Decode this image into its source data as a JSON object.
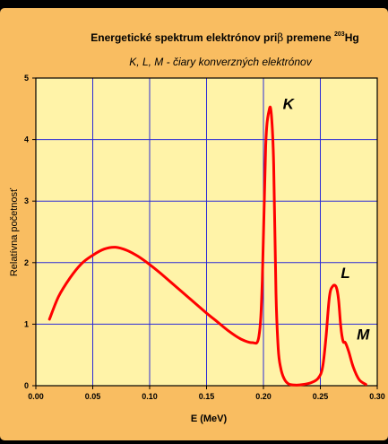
{
  "chart_data": {
    "type": "line",
    "title_main": "Energetické spektrum elektrónov pri",
    "title_beta": "β",
    "title_rest": " premene ",
    "title_mass": "203",
    "title_element": "Hg",
    "subtitle": "K, L, M - čiary konverzných elektrónov",
    "xlabel": "E (MeV)",
    "ylabel": "Relatívna početnosť",
    "xlim": [
      0,
      0.3
    ],
    "ylim": [
      0,
      5
    ],
    "x_ticks": [
      "0.00",
      "0.05",
      "0.10",
      "0.15",
      "0.20",
      "0.25",
      "0.30"
    ],
    "y_ticks": [
      "0",
      "1",
      "2",
      "3",
      "4",
      "5"
    ],
    "grid": true,
    "plot_bg": "#fff3a8",
    "grid_color": "#2b2bd6",
    "line_color": "#ff0000",
    "annotations": [
      {
        "text": "K",
        "x": 0.217,
        "y": 4.5
      },
      {
        "text": "L",
        "x": 0.268,
        "y": 1.75
      },
      {
        "text": "M",
        "x": 0.282,
        "y": 0.75
      }
    ],
    "series": [
      {
        "x": [
          0.012,
          0.02,
          0.03,
          0.04,
          0.05,
          0.06,
          0.07,
          0.08,
          0.09,
          0.1,
          0.11,
          0.12,
          0.13,
          0.14,
          0.15,
          0.16,
          0.17,
          0.18,
          0.19,
          0.196,
          0.199,
          0.202,
          0.205,
          0.207,
          0.209,
          0.211,
          0.213,
          0.215,
          0.218,
          0.222,
          0.228,
          0.235,
          0.242,
          0.248,
          0.252,
          0.255,
          0.258,
          0.261,
          0.264,
          0.266,
          0.268,
          0.27,
          0.272,
          0.275,
          0.279,
          0.284,
          0.29
        ],
        "y": [
          1.08,
          1.45,
          1.75,
          1.98,
          2.12,
          2.22,
          2.25,
          2.2,
          2.1,
          1.97,
          1.82,
          1.66,
          1.5,
          1.34,
          1.18,
          1.03,
          0.88,
          0.76,
          0.7,
          0.8,
          1.7,
          3.9,
          4.48,
          4.4,
          3.6,
          1.5,
          0.6,
          0.3,
          0.12,
          0.03,
          0.01,
          0.02,
          0.05,
          0.12,
          0.3,
          0.8,
          1.45,
          1.62,
          1.6,
          1.4,
          0.95,
          0.72,
          0.7,
          0.55,
          0.3,
          0.1,
          0.02
        ]
      }
    ]
  }
}
